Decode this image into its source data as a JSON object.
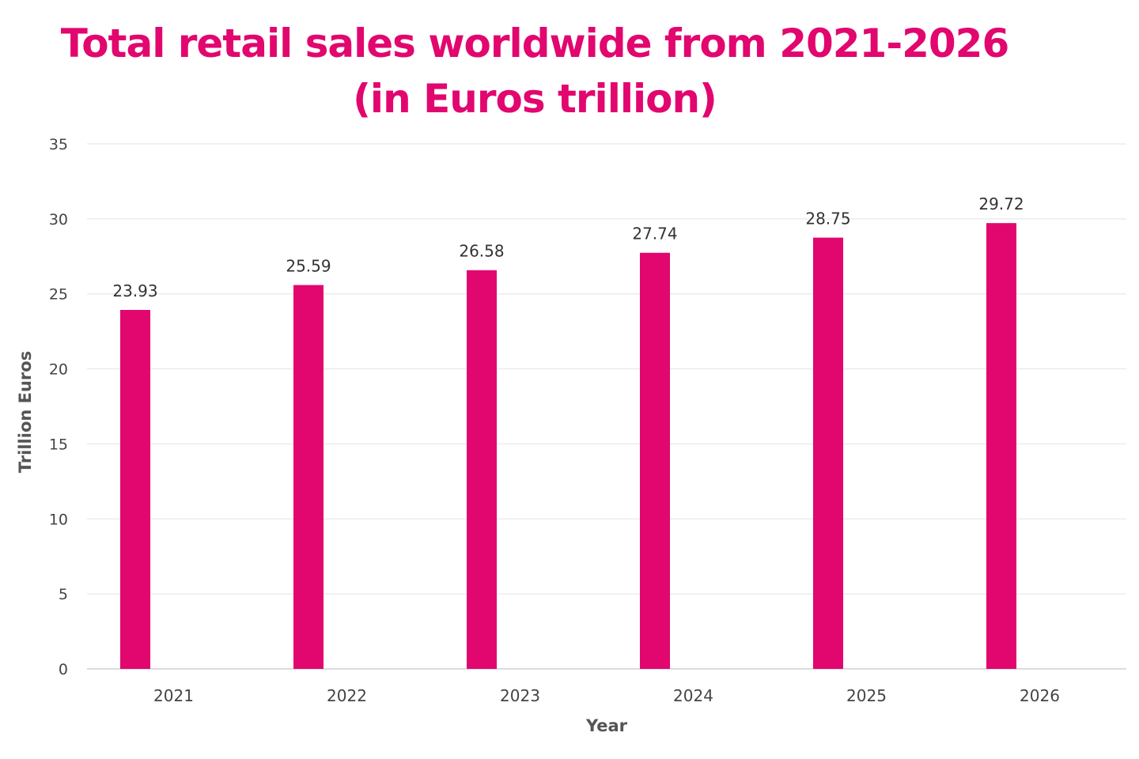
{
  "chart_data": {
    "type": "bar",
    "title_line1": "Total retail sales worldwide from 2021-2026",
    "title_line2": "(in Euros trillion)",
    "xlabel": "Year",
    "ylabel": "Trillion Euros",
    "categories": [
      "2021",
      "2022",
      "2023",
      "2024",
      "2025",
      "2026"
    ],
    "values": [
      23.93,
      25.59,
      26.58,
      27.74,
      28.75,
      29.72
    ],
    "value_labels": [
      "23.93",
      "25.59",
      "26.58",
      "27.74",
      "28.75",
      "29.72"
    ],
    "ylim": [
      0,
      35
    ],
    "yticks": [
      "0",
      "5",
      "10",
      "15",
      "20",
      "25",
      "30",
      "35"
    ],
    "grid": true,
    "legend": "none",
    "bar_color": "#e2066f",
    "title_color": "#e2066f"
  }
}
